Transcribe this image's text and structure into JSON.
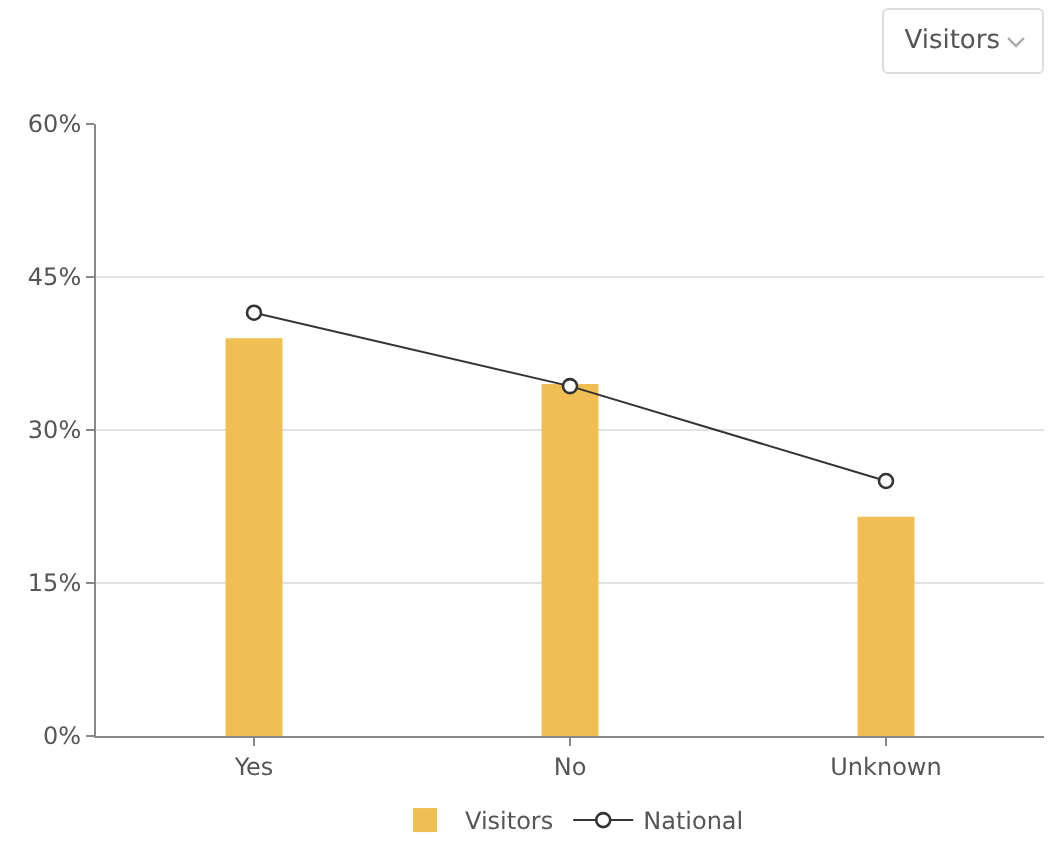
{
  "chart_data": {
    "type": "bar",
    "categories": [
      "Yes",
      "No",
      "Unknown"
    ],
    "series": [
      {
        "name": "Visitors",
        "color": "#f0be52",
        "values": [
          39,
          34.5,
          21.5
        ]
      },
      {
        "name": "National",
        "type": "line",
        "color": "#333333",
        "values": [
          41.5,
          34.3,
          25
        ],
        "marker": "circle"
      }
    ],
    "ylim": [
      0,
      60
    ],
    "yticks": [
      {
        "value": 0,
        "label": "0%"
      },
      {
        "value": 15,
        "label": "15%"
      },
      {
        "value": 30,
        "label": "30%"
      },
      {
        "value": 45,
        "label": "45%"
      },
      {
        "value": 60,
        "label": "60%"
      }
    ],
    "grid": "y",
    "legend": "bottom",
    "annotations": [
      "Visitors"
    ]
  }
}
